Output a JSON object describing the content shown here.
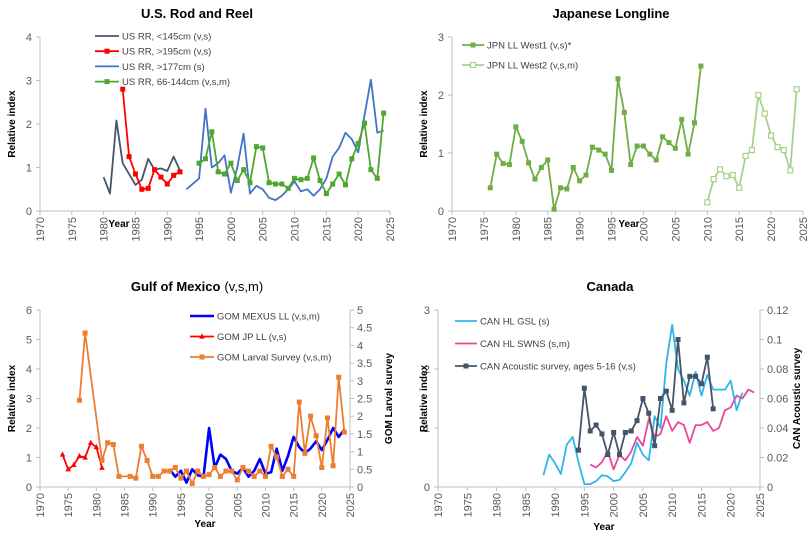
{
  "chart_data": [
    {
      "type": "line",
      "title": "U.S. Rod and Reel",
      "title_suffix": "",
      "xlabel": "Year",
      "ylabel": "Relative index",
      "xlim": [
        1970,
        2025
      ],
      "xticks": [
        "1970",
        "1975",
        "1980",
        "1985",
        "1990",
        "1995",
        "2000",
        "2005",
        "2010",
        "2015",
        "2020",
        "2025"
      ],
      "ylim": [
        0,
        4
      ],
      "yticks": [
        "0",
        "1",
        "2",
        "3",
        "4"
      ],
      "legend_position": "top-center",
      "series": [
        {
          "name": "US RR, <145cm (v,s)",
          "color": "#44546A",
          "marker": "none",
          "axis": "left",
          "x": [
            1980,
            1981,
            1982,
            1983,
            1985,
            1986,
            1987,
            1988,
            1989,
            1990,
            1991,
            1992
          ],
          "y": [
            0.78,
            0.4,
            2.08,
            1.1,
            0.6,
            0.72,
            1.2,
            0.95,
            0.98,
            0.92,
            1.25,
            0.93
          ]
        },
        {
          "name": "US RR, >195cm (v,s)",
          "color": "#FF0000",
          "marker": "square",
          "axis": "left",
          "x": [
            1983,
            1984,
            1985,
            1986,
            1987,
            1988,
            1989,
            1990,
            1991,
            1992
          ],
          "y": [
            2.8,
            1.25,
            0.85,
            0.5,
            0.52,
            0.95,
            0.78,
            0.62,
            0.82,
            0.9
          ]
        },
        {
          "name": "US RR, >177cm (s)",
          "color": "#4472C4",
          "marker": "none",
          "axis": "left",
          "x": [
            1993,
            1995,
            1996,
            1997,
            1998,
            1999,
            2000,
            2001,
            2002,
            2003,
            2004,
            2005,
            2006,
            2007,
            2008,
            2009,
            2010,
            2011,
            2012,
            2013,
            2014,
            2015,
            2016,
            2017,
            2018,
            2019,
            2020,
            2021,
            2022,
            2023,
            2024
          ],
          "y": [
            0.5,
            0.75,
            2.35,
            1.0,
            1.1,
            1.28,
            0.42,
            1.0,
            1.78,
            0.4,
            0.58,
            0.5,
            0.3,
            0.25,
            0.35,
            0.5,
            0.68,
            0.45,
            0.5,
            0.35,
            0.5,
            0.75,
            1.25,
            1.45,
            1.8,
            1.65,
            1.35,
            2.2,
            3.02,
            1.8,
            1.85
          ]
        },
        {
          "name": "US RR, 66-144cm (v,s,m)",
          "color": "#4EA72E",
          "marker": "square",
          "axis": "left",
          "x": [
            1995,
            1996,
            1997,
            1998,
            1999,
            2000,
            2001,
            2002,
            2003,
            2004,
            2005,
            2006,
            2007,
            2008,
            2009,
            2010,
            2011,
            2012,
            2013,
            2014,
            2015,
            2016,
            2017,
            2018,
            2019,
            2020,
            2021,
            2022,
            2023,
            2024
          ],
          "y": [
            1.1,
            1.2,
            1.82,
            0.9,
            0.85,
            1.1,
            0.7,
            0.95,
            0.65,
            1.48,
            1.45,
            0.65,
            0.62,
            0.62,
            0.52,
            0.75,
            0.72,
            0.75,
            1.22,
            0.7,
            0.4,
            0.62,
            0.85,
            0.6,
            1.2,
            1.55,
            2.02,
            0.95,
            0.75,
            2.25
          ]
        }
      ]
    },
    {
      "type": "line",
      "title": "Japanese Longline",
      "title_suffix": "",
      "xlabel": "Year",
      "ylabel": "Relative index",
      "xlim": [
        1970,
        2025
      ],
      "xticks": [
        "1970",
        "1975",
        "1980",
        "1985",
        "1990",
        "1995",
        "2000",
        "2005",
        "2010",
        "2015",
        "2020",
        "2025"
      ],
      "ylim": [
        0,
        3
      ],
      "yticks": [
        "0",
        "1",
        "2",
        "3"
      ],
      "legend_position": "top-left",
      "series": [
        {
          "name": "JPN LL West1 (v,s)*",
          "color": "#70AD47",
          "marker": "square",
          "axis": "left",
          "x": [
            1976,
            1977,
            1978,
            1979,
            1980,
            1981,
            1982,
            1983,
            1984,
            1985,
            1986,
            1987,
            1988,
            1989,
            1990,
            1991,
            1992,
            1993,
            1994,
            1995,
            1996,
            1997,
            1998,
            1999,
            2000,
            2001,
            2002,
            2003,
            2004,
            2005,
            2006,
            2007,
            2008,
            2009
          ],
          "y": [
            0.4,
            0.98,
            0.82,
            0.8,
            1.45,
            1.2,
            0.83,
            0.55,
            0.75,
            0.88,
            0.03,
            0.4,
            0.38,
            0.75,
            0.52,
            0.62,
            1.1,
            1.05,
            0.98,
            0.7,
            2.28,
            1.7,
            0.8,
            1.12,
            1.12,
            0.98,
            0.88,
            1.28,
            1.18,
            1.08,
            1.58,
            0.98,
            1.52,
            2.5
          ]
        },
        {
          "name": "JPN LL West2 (v,s,m)",
          "color": "#A9D18E",
          "marker": "square-open",
          "axis": "left",
          "x": [
            2010,
            2011,
            2012,
            2013,
            2014,
            2015,
            2016,
            2017,
            2018,
            2019,
            2020,
            2021,
            2022,
            2023,
            2024
          ],
          "y": [
            0.15,
            0.55,
            0.72,
            0.6,
            0.62,
            0.4,
            0.95,
            1.05,
            2.0,
            1.68,
            1.3,
            1.1,
            1.05,
            0.7,
            2.1
          ]
        }
      ]
    },
    {
      "type": "line",
      "title": "Gulf of Mexico",
      "title_suffix": "(v,s,m)",
      "xlabel": "Year",
      "ylabel": "Relative index",
      "y2label": "GOM Larval survey",
      "xlim": [
        1970,
        2025
      ],
      "xticks": [
        "1970",
        "1975",
        "1980",
        "1985",
        "1990",
        "1995",
        "2000",
        "2005",
        "2010",
        "2015",
        "2020",
        "2025"
      ],
      "ylim": [
        0,
        6
      ],
      "yticks": [
        "0",
        "1",
        "2",
        "3",
        "4",
        "5",
        "6"
      ],
      "y2lim": [
        0,
        5
      ],
      "y2ticks": [
        "0",
        "0.5",
        "1",
        "1.5",
        "2",
        "2.5",
        "3",
        "3.5",
        "4",
        "4.5",
        "5"
      ],
      "legend_position": "top-right",
      "series": [
        {
          "name": "GOM MEXUS LL (v,s,m)",
          "color": "#0000FF",
          "marker": "none",
          "axis": "left",
          "bold": true,
          "x": [
            1993,
            1994,
            1995,
            1996,
            1997,
            1998,
            1999,
            2000,
            2001,
            2002,
            2003,
            2004,
            2005,
            2006,
            2007,
            2008,
            2009,
            2010,
            2011,
            2012,
            2013,
            2014,
            2015,
            2016,
            2017,
            2018,
            2019,
            2020,
            2021,
            2022,
            2023,
            2024
          ],
          "y": [
            0.6,
            0.35,
            0.55,
            0.15,
            0.6,
            0.4,
            0.35,
            2.0,
            0.65,
            1.1,
            0.95,
            0.55,
            0.45,
            0.65,
            0.35,
            0.55,
            0.95,
            0.45,
            0.5,
            1.3,
            0.55,
            1.05,
            1.7,
            1.35,
            1.15,
            1.3,
            1.55,
            1.25,
            1.6,
            2.0,
            1.7,
            1.95
          ]
        },
        {
          "name": "GOM JP LL (v,s)",
          "color": "#FF0000",
          "marker": "triangle",
          "axis": "left",
          "x": [
            1974,
            1975,
            1976,
            1977,
            1978,
            1979,
            1980,
            1981
          ],
          "y": [
            1.1,
            0.6,
            0.75,
            1.05,
            1.0,
            1.5,
            1.35,
            0.65
          ]
        },
        {
          "name": "GOM Larval Survey (v,s,m)",
          "color": "#ED7D31",
          "marker": "square",
          "axis": "right",
          "x": [
            1977,
            1978,
            1981,
            1982,
            1983,
            1984,
            1986,
            1987,
            1988,
            1989,
            1990,
            1991,
            1992,
            1993,
            1994,
            1995,
            1996,
            1997,
            1998,
            1999,
            2000,
            2001,
            2002,
            2003,
            2004,
            2005,
            2006,
            2007,
            2008,
            2009,
            2010,
            2011,
            2012,
            2013,
            2014,
            2015,
            2016,
            2017,
            2018,
            2019,
            2020,
            2021,
            2022,
            2023,
            2024
          ],
          "y": [
            2.45,
            4.35,
            0.75,
            1.25,
            1.2,
            0.3,
            0.3,
            0.25,
            1.15,
            0.75,
            0.3,
            0.3,
            0.45,
            0.45,
            0.55,
            0.25,
            0.45,
            0.1,
            0.45,
            0.3,
            0.35,
            0.55,
            0.3,
            0.45,
            0.45,
            0.2,
            0.55,
            0.45,
            0.3,
            0.45,
            0.3,
            1.15,
            0.85,
            0.3,
            0.5,
            0.3,
            2.4,
            0.95,
            2.0,
            1.45,
            0.55,
            1.95,
            0.6,
            3.1,
            1.55
          ]
        }
      ]
    },
    {
      "type": "line",
      "title": "Canada",
      "title_suffix": "",
      "xlabel": "Year",
      "ylabel": "Relative index",
      "y2label": "CAN Acoustic survey",
      "xlim": [
        1970,
        2025
      ],
      "xticks": [
        "1970",
        "1975",
        "1980",
        "1985",
        "1990",
        "1995",
        "2000",
        "2005",
        "2010",
        "2015",
        "2020",
        "2025"
      ],
      "ylim": [
        0,
        3
      ],
      "yticks": [
        "0",
        "1",
        "2",
        "3"
      ],
      "y2lim": [
        0,
        0.12
      ],
      "y2ticks": [
        "0",
        "0.02",
        "0.04",
        "0.06",
        "0.08",
        "0.1",
        "0.12"
      ],
      "legend_position": "top-left",
      "series": [
        {
          "name": "CAN HL GSL (s)",
          "color": "#2FB6E8",
          "marker": "none",
          "axis": "left",
          "x": [
            1988,
            1989,
            1990,
            1991,
            1992,
            1993,
            1994,
            1995,
            1996,
            1997,
            1998,
            1999,
            2000,
            2001,
            2002,
            2003,
            2004,
            2005,
            2006,
            2007,
            2008,
            2009,
            2010,
            2011,
            2012,
            2013,
            2014,
            2015,
            2016,
            2017,
            2018,
            2019,
            2020,
            2021,
            2022
          ],
          "y": [
            0.2,
            0.55,
            0.4,
            0.22,
            0.72,
            0.85,
            0.42,
            0.05,
            0.05,
            0.1,
            0.2,
            0.18,
            0.1,
            0.12,
            0.25,
            0.4,
            0.75,
            0.55,
            0.45,
            1.2,
            1.0,
            2.1,
            2.75,
            2.0,
            1.8,
            1.55,
            1.95,
            1.55,
            1.9,
            1.65,
            1.65,
            1.65,
            1.8,
            1.3,
            1.6
          ]
        },
        {
          "name": "CAN HL SWNS (s,m)",
          "color": "#E8489A",
          "marker": "none",
          "axis": "left",
          "x": [
            1996,
            1997,
            1998,
            1999,
            2000,
            2001,
            2002,
            2003,
            2004,
            2005,
            2006,
            2007,
            2008,
            2009,
            2010,
            2011,
            2012,
            2013,
            2014,
            2015,
            2016,
            2017,
            2018,
            2019,
            2020,
            2021,
            2022,
            2023,
            2024
          ],
          "y": [
            0.38,
            0.33,
            0.42,
            0.6,
            0.3,
            0.55,
            0.45,
            0.6,
            0.85,
            0.7,
            1.15,
            0.85,
            0.9,
            1.2,
            0.95,
            1.1,
            1.05,
            0.75,
            1.05,
            1.05,
            1.1,
            0.95,
            1.0,
            1.3,
            1.35,
            1.55,
            1.5,
            1.65,
            1.6
          ]
        },
        {
          "name": "CAN Acoustic survey, ages 5-16 (v,s)",
          "color": "#44546A",
          "marker": "square",
          "axis": "right",
          "x": [
            1994,
            1995,
            1996,
            1997,
            1998,
            1999,
            2000,
            2001,
            2002,
            2003,
            2004,
            2005,
            2006,
            2007,
            2008,
            2009,
            2010,
            2011,
            2012,
            2013,
            2014,
            2015,
            2016,
            2017
          ],
          "y": [
            0.025,
            0.067,
            0.038,
            0.042,
            0.036,
            0.022,
            0.037,
            0.022,
            0.037,
            0.038,
            0.045,
            0.06,
            0.05,
            0.028,
            0.06,
            0.065,
            0.052,
            0.1,
            0.057,
            0.075,
            0.075,
            0.07,
            0.088,
            0.053
          ]
        }
      ]
    }
  ]
}
